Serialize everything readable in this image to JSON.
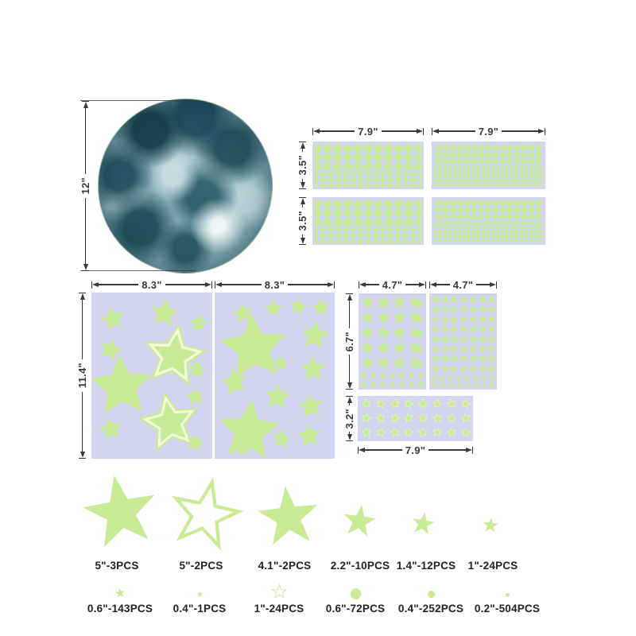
{
  "dimensions": {
    "moon": "12\"",
    "dot_sheet_width": "7.9\"",
    "dot_sheet_height": "3.5\"",
    "big_sheet_width": "8.3\"",
    "big_sheet_height": "11.4\"",
    "small_sheet_width": "4.7\"",
    "small_sheet_height": "6.7\"",
    "strip_height": "3.2\"",
    "strip_width": "7.9\""
  },
  "legend": {
    "row1": [
      {
        "label": "5\"-3PCS"
      },
      {
        "label": "5\"-2PCS"
      },
      {
        "label": "4.1\"-2PCS"
      },
      {
        "label": "2.2\"-10PCS"
      },
      {
        "label": "1.4\"-12PCS"
      },
      {
        "label": "1\"-24PCS"
      }
    ],
    "row2": [
      {
        "label": "0.6\"-143PCS"
      },
      {
        "label": "0.4\"-1PCS"
      },
      {
        "label": "1\"-24PCS"
      },
      {
        "label": "0.6\"-72PCS"
      },
      {
        "label": "0.4\"-252PCS"
      },
      {
        "label": "0.2\"-504PCS"
      }
    ]
  },
  "colors": {
    "glow_green": "#c9eb96",
    "sheet_lavender": "#d3d6f0",
    "dim_line": "#3a3a3a",
    "label_text": "#222222",
    "moon_dark": "#1d4b59",
    "moon_light": "#cfe2e6"
  }
}
